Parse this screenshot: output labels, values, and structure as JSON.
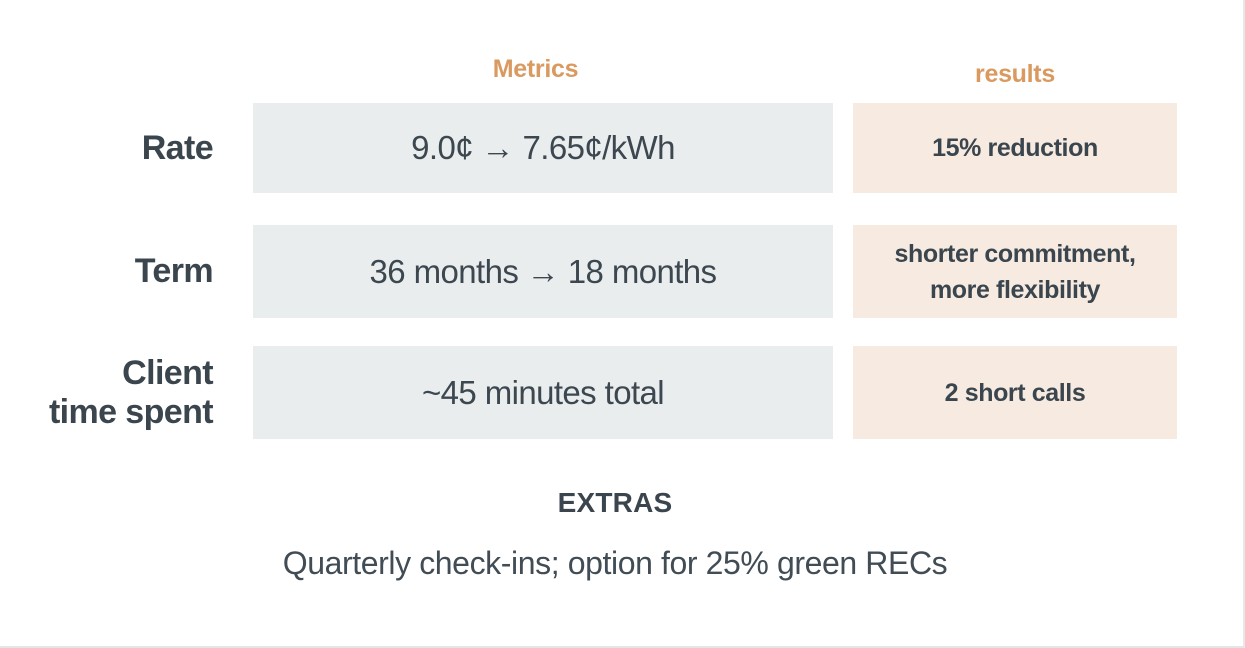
{
  "colors": {
    "accent_orange": "#d9995f",
    "metric_cell_bg": "#e9edee",
    "result_cell_bg": "#f7ebe1",
    "text_dark": "#3a454e",
    "edge_border": "#e2e6e6"
  },
  "table": {
    "headers": {
      "metrics": "Metrics",
      "results": "results"
    },
    "rows": [
      {
        "label": "Rate",
        "metric": "9.0¢ → 7.65¢/kWh",
        "result": "15% reduction"
      },
      {
        "label": "Term",
        "metric": "36 months → 18 months",
        "result": "shorter commitment,\nmore flexibility"
      },
      {
        "label": "Client\ntime spent",
        "metric": "~45 minutes total",
        "result": "2 short calls"
      }
    ]
  },
  "extras": {
    "title": "EXTRAS",
    "body": "Quarterly check-ins; option for 25% green RECs"
  }
}
